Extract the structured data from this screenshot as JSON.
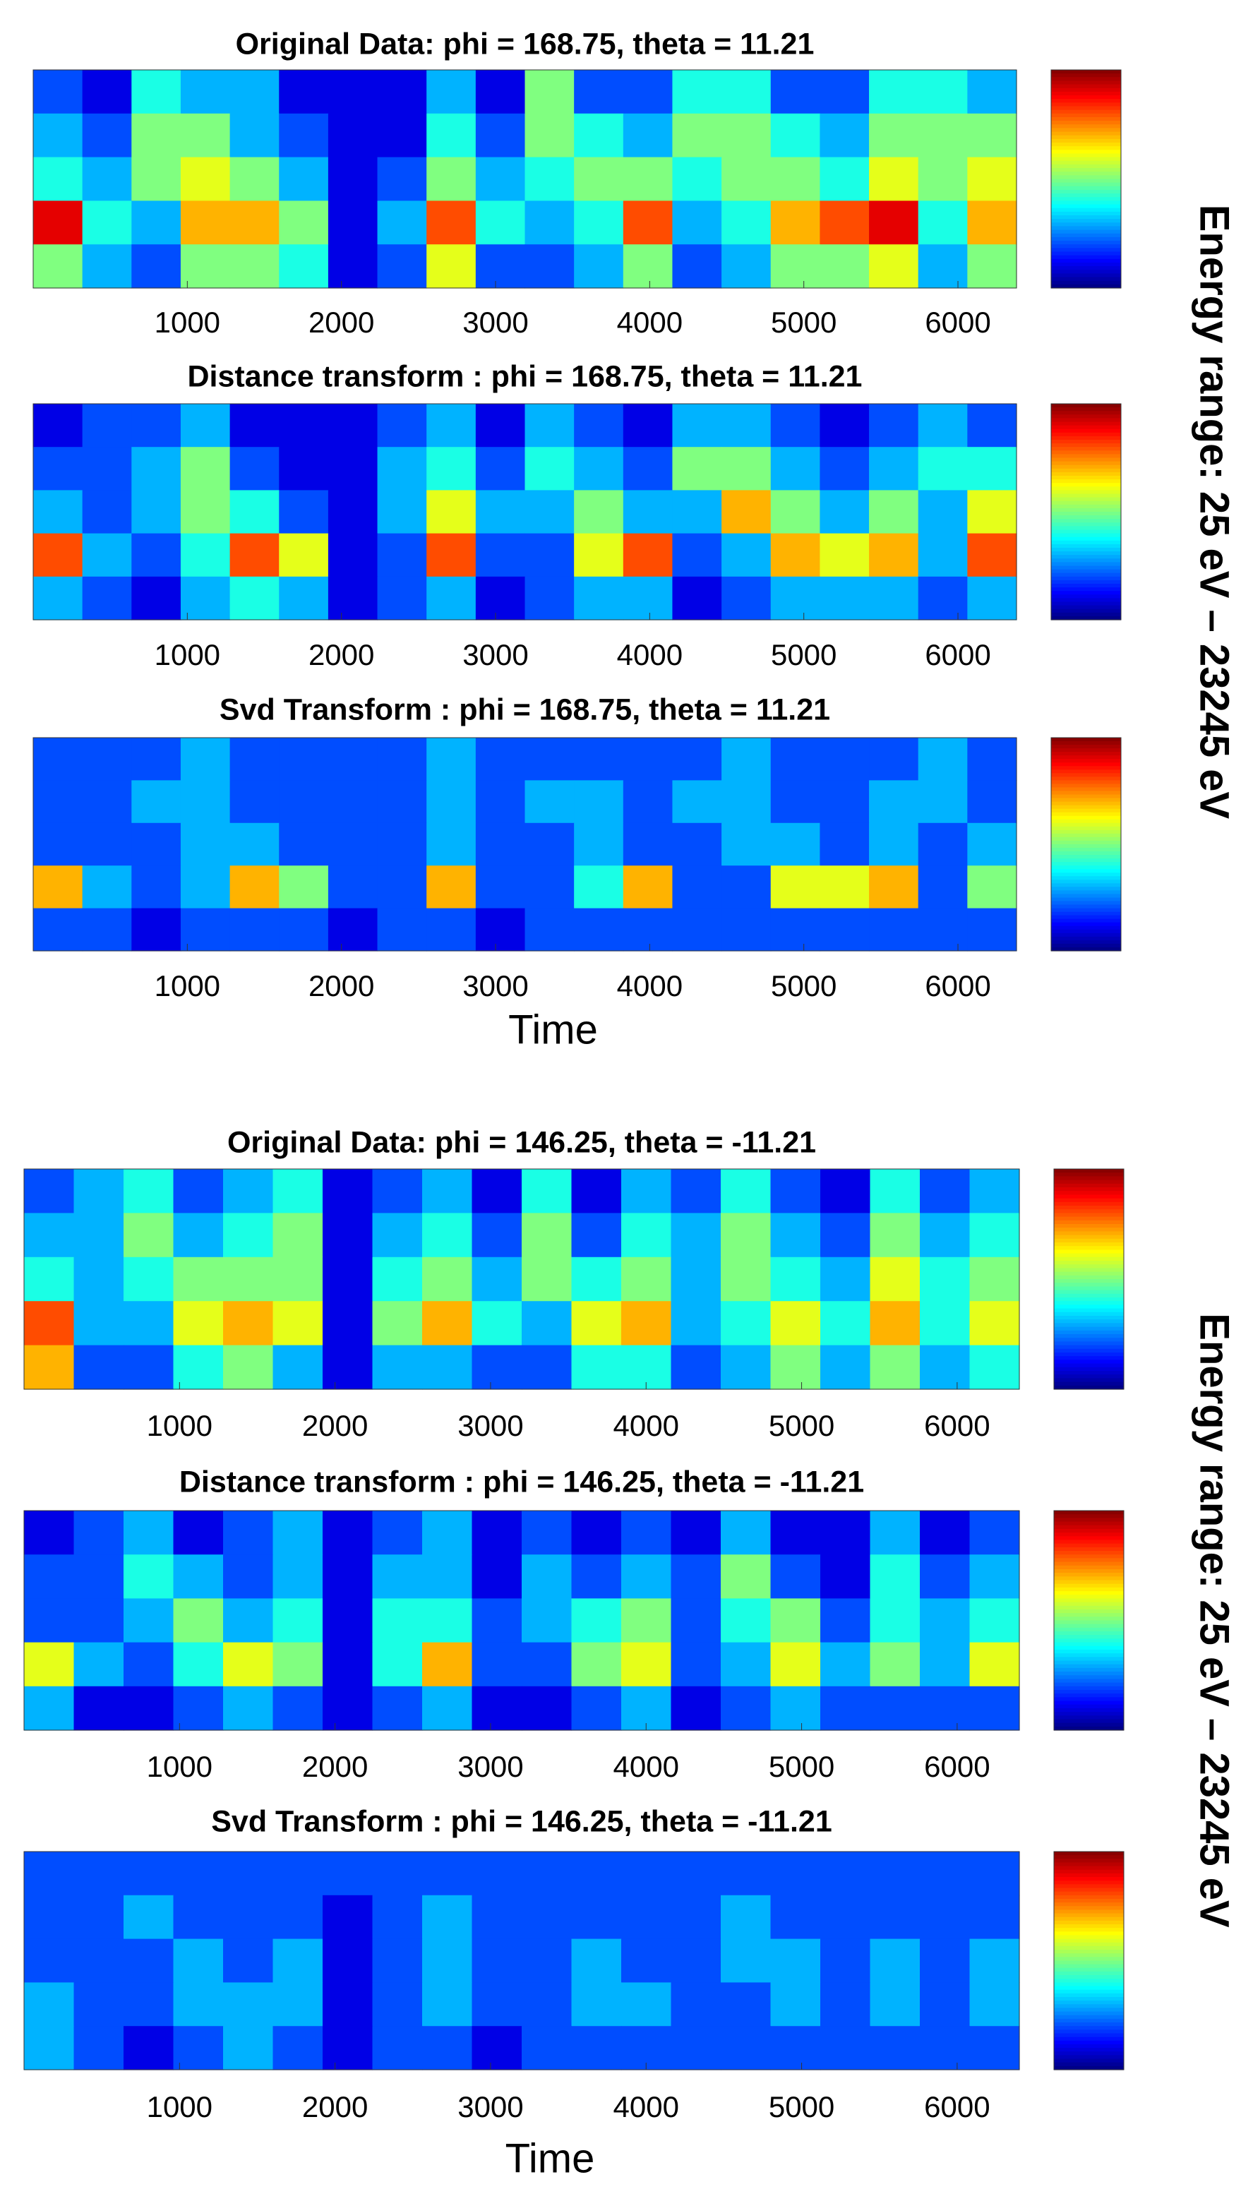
{
  "chart_data": [
    {
      "type": "heatmap",
      "title": "Original Data: phi = 168.75, theta = 11.21",
      "colormap": "jet",
      "zlim": [
        0,
        10
      ],
      "xlim": [
        0,
        6380
      ],
      "xticks": [
        1000,
        2000,
        3000,
        4000,
        5000,
        6000
      ],
      "z": [
        [
          2,
          1,
          4,
          3,
          3,
          1,
          1,
          1,
          3,
          1,
          5,
          2,
          2,
          4,
          4,
          2,
          2,
          4,
          4,
          3
        ],
        [
          3,
          2,
          5,
          5,
          3,
          2,
          1,
          1,
          4,
          2,
          5,
          4,
          3,
          5,
          5,
          4,
          3,
          5,
          5,
          5
        ],
        [
          4,
          3,
          5,
          6,
          5,
          3,
          1,
          2,
          5,
          3,
          4,
          5,
          5,
          4,
          5,
          5,
          4,
          6,
          5,
          6
        ],
        [
          9,
          4,
          3,
          7,
          7,
          5,
          1,
          3,
          8,
          4,
          3,
          4,
          8,
          3,
          4,
          7,
          8,
          9,
          4,
          7
        ],
        [
          5,
          3,
          2,
          5,
          5,
          4,
          1,
          2,
          6,
          2,
          2,
          3,
          5,
          2,
          3,
          5,
          5,
          6,
          3,
          5
        ]
      ]
    },
    {
      "type": "heatmap",
      "title": "Distance transform : phi = 168.75, theta = 11.21",
      "colormap": "jet",
      "zlim": [
        0,
        10
      ],
      "xlim": [
        0,
        6380
      ],
      "xticks": [
        1000,
        2000,
        3000,
        4000,
        5000,
        6000
      ],
      "ylabel": "Energy range: 25 eV – 23245 eV",
      "z": [
        [
          1,
          2,
          2,
          3,
          1,
          1,
          1,
          2,
          3,
          1,
          3,
          2,
          1,
          3,
          3,
          2,
          1,
          2,
          3,
          2
        ],
        [
          2,
          2,
          3,
          5,
          2,
          1,
          1,
          3,
          4,
          2,
          4,
          3,
          2,
          5,
          5,
          3,
          2,
          3,
          4,
          4
        ],
        [
          3,
          2,
          3,
          5,
          4,
          2,
          1,
          3,
          6,
          3,
          3,
          5,
          3,
          3,
          7,
          5,
          3,
          5,
          3,
          6
        ],
        [
          8,
          3,
          2,
          4,
          8,
          6,
          1,
          2,
          8,
          2,
          2,
          6,
          8,
          2,
          3,
          7,
          6,
          7,
          3,
          8
        ],
        [
          3,
          2,
          1,
          3,
          4,
          3,
          1,
          2,
          3,
          1,
          2,
          3,
          3,
          1,
          2,
          3,
          3,
          3,
          2,
          3
        ]
      ]
    },
    {
      "type": "heatmap",
      "title": "Svd Transform : phi = 168.75, theta = 11.21",
      "colormap": "jet",
      "zlim": [
        0,
        10
      ],
      "xlim": [
        0,
        6380
      ],
      "xticks": [
        1000,
        2000,
        3000,
        4000,
        5000,
        6000
      ],
      "xlabel": "Time",
      "z": [
        [
          2,
          2,
          2,
          3,
          2,
          2,
          2,
          2,
          3,
          2,
          2,
          2,
          2,
          2,
          3,
          2,
          2,
          2,
          3,
          2
        ],
        [
          2,
          2,
          3,
          3,
          2,
          2,
          2,
          2,
          3,
          2,
          3,
          3,
          2,
          3,
          3,
          2,
          2,
          3,
          3,
          2
        ],
        [
          2,
          2,
          2,
          3,
          3,
          2,
          2,
          2,
          3,
          2,
          2,
          3,
          2,
          2,
          3,
          3,
          2,
          3,
          2,
          3
        ],
        [
          7,
          3,
          2,
          3,
          7,
          5,
          2,
          2,
          7,
          2,
          2,
          4,
          7,
          2,
          2,
          6,
          6,
          7,
          2,
          5
        ],
        [
          2,
          2,
          1,
          2,
          2,
          2,
          1,
          2,
          2,
          1,
          2,
          2,
          2,
          2,
          2,
          2,
          2,
          2,
          2,
          2
        ]
      ]
    },
    {
      "type": "heatmap",
      "title": "Original Data: phi = 146.25, theta = -11.21",
      "colormap": "jet",
      "zlim": [
        0,
        10
      ],
      "xlim": [
        0,
        6400
      ],
      "xticks": [
        1000,
        2000,
        3000,
        4000,
        5000,
        6000
      ],
      "z": [
        [
          2,
          3,
          4,
          2,
          3,
          4,
          1,
          2,
          3,
          1,
          4,
          1,
          3,
          2,
          4,
          2,
          1,
          4,
          2,
          3
        ],
        [
          3,
          3,
          5,
          3,
          4,
          5,
          1,
          3,
          4,
          2,
          5,
          2,
          4,
          3,
          5,
          3,
          2,
          5,
          3,
          4
        ],
        [
          4,
          3,
          4,
          5,
          5,
          5,
          1,
          4,
          5,
          3,
          5,
          4,
          5,
          3,
          5,
          4,
          3,
          6,
          4,
          5
        ],
        [
          8,
          3,
          3,
          6,
          7,
          6,
          1,
          5,
          7,
          4,
          3,
          6,
          7,
          3,
          4,
          6,
          4,
          7,
          4,
          6
        ],
        [
          7,
          2,
          2,
          4,
          5,
          3,
          1,
          3,
          3,
          2,
          2,
          4,
          4,
          2,
          3,
          5,
          3,
          5,
          3,
          4
        ]
      ]
    },
    {
      "type": "heatmap",
      "title": "Distance transform : phi = 146.25, theta = -11.21",
      "colormap": "jet",
      "zlim": [
        0,
        10
      ],
      "xlim": [
        0,
        6400
      ],
      "xticks": [
        1000,
        2000,
        3000,
        4000,
        5000,
        6000
      ],
      "ylabel": "Energy range: 25 eV – 23245 eV",
      "z": [
        [
          1,
          2,
          3,
          1,
          2,
          3,
          1,
          2,
          3,
          1,
          2,
          1,
          2,
          1,
          3,
          1,
          1,
          3,
          1,
          2
        ],
        [
          2,
          2,
          4,
          3,
          2,
          3,
          1,
          3,
          3,
          1,
          3,
          2,
          3,
          2,
          5,
          2,
          1,
          4,
          2,
          3
        ],
        [
          2,
          2,
          3,
          5,
          3,
          4,
          1,
          4,
          4,
          2,
          3,
          4,
          5,
          2,
          4,
          5,
          2,
          4,
          3,
          4
        ],
        [
          6,
          3,
          2,
          4,
          6,
          5,
          1,
          4,
          7,
          2,
          2,
          5,
          6,
          2,
          3,
          6,
          3,
          5,
          3,
          6
        ],
        [
          3,
          1,
          1,
          2,
          3,
          2,
          1,
          2,
          3,
          1,
          1,
          2,
          3,
          1,
          2,
          3,
          2,
          2,
          2,
          2
        ]
      ]
    },
    {
      "type": "heatmap",
      "title": "Svd Transform : phi = 146.25, theta = -11.21",
      "colormap": "jet",
      "zlim": [
        0,
        10
      ],
      "xlim": [
        0,
        6400
      ],
      "xticks": [
        1000,
        2000,
        3000,
        4000,
        5000,
        6000
      ],
      "xlabel": "Time",
      "z": [
        [
          2,
          2,
          2,
          2,
          2,
          2,
          2,
          2,
          2,
          2,
          2,
          2,
          2,
          2,
          2,
          2,
          2,
          2,
          2,
          2
        ],
        [
          2,
          2,
          3,
          2,
          2,
          2,
          1,
          2,
          3,
          2,
          2,
          2,
          2,
          2,
          3,
          2,
          2,
          2,
          2,
          2
        ],
        [
          2,
          2,
          2,
          3,
          2,
          3,
          1,
          2,
          3,
          2,
          2,
          3,
          2,
          2,
          3,
          3,
          2,
          3,
          2,
          3
        ],
        [
          3,
          2,
          2,
          3,
          3,
          3,
          1,
          2,
          3,
          2,
          2,
          3,
          3,
          2,
          2,
          3,
          2,
          3,
          2,
          3
        ],
        [
          3,
          2,
          1,
          2,
          3,
          2,
          1,
          2,
          2,
          1,
          2,
          2,
          2,
          2,
          2,
          2,
          2,
          2,
          2,
          2
        ]
      ]
    }
  ]
}
